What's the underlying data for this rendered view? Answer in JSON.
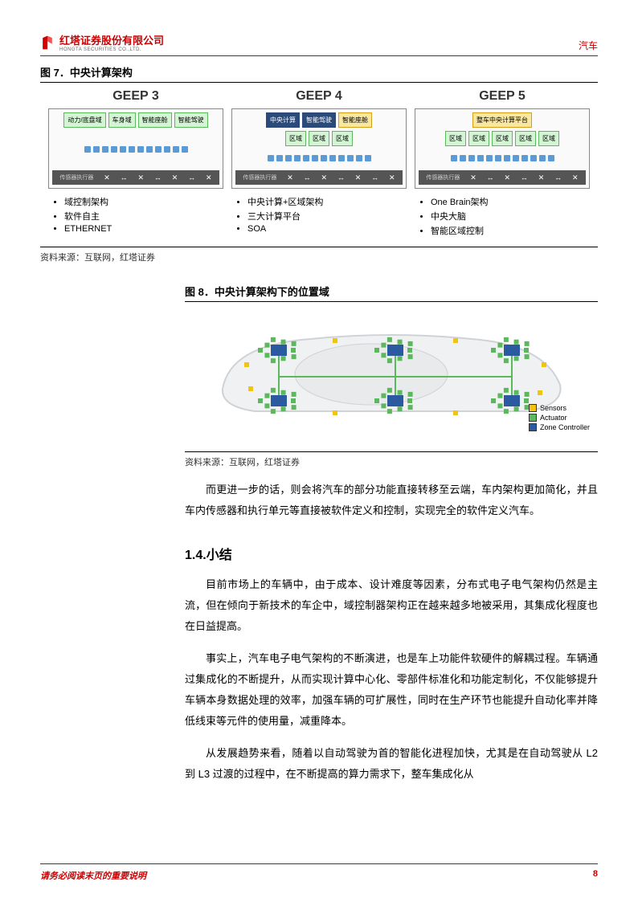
{
  "header": {
    "company": "红塔证券股份有限公司",
    "company_en": "HONGTA SECURITIES CO.,LTD.",
    "category": "汽车"
  },
  "figure7": {
    "title": "图 7．中央计算架构",
    "source": "资料来源：互联网，红塔证券",
    "columns": [
      {
        "title": "GEEP 3",
        "top_modules": [
          {
            "label": "动力/底盘域",
            "cls": "green"
          },
          {
            "label": "车身域",
            "cls": "green"
          },
          {
            "label": "智能座舱",
            "cls": "green"
          },
          {
            "label": "智能驾驶",
            "cls": "green"
          }
        ],
        "bullets": [
          "域控制架构",
          "软件自主",
          "ETHERNET"
        ]
      },
      {
        "title": "GEEP 4",
        "top_modules": [
          {
            "label": "中央计算",
            "cls": "navy"
          },
          {
            "label": "智能驾驶",
            "cls": "navy"
          },
          {
            "label": "智能座舱",
            "cls": "yellow"
          }
        ],
        "zone_modules": [
          {
            "label": "区域",
            "cls": "green"
          },
          {
            "label": "区域",
            "cls": "green"
          },
          {
            "label": "区域",
            "cls": "green"
          }
        ],
        "bullets": [
          "中央计算+区域架构",
          "三大计算平台",
          "SOA"
        ]
      },
      {
        "title": "GEEP 5",
        "top_modules": [
          {
            "label": "整车中央计算平台",
            "cls": "yellow"
          }
        ],
        "zone_modules": [
          {
            "label": "区域",
            "cls": "green"
          },
          {
            "label": "区域",
            "cls": "green"
          },
          {
            "label": "区域",
            "cls": "green"
          },
          {
            "label": "区域",
            "cls": "green"
          },
          {
            "label": "区域",
            "cls": "green"
          }
        ],
        "bullets": [
          "One Brain架构",
          "中央大脑",
          "智能区域控制"
        ]
      }
    ],
    "sensor_label": "传感器执行器"
  },
  "figure8": {
    "title": "图 8．中央计算架构下的位置域",
    "source": "资料来源：互联网，红塔证券",
    "legend": {
      "sensors": "Sensors",
      "actuator": "Actuator",
      "zone": "Zone Controller"
    },
    "colors": {
      "sensor": "#f1c40f",
      "actuator": "#5cb85c",
      "zone": "#2b5aa0",
      "car_fill": "#f0f1f2",
      "car_stroke": "#cfd3d6",
      "bus": "#5cb85c"
    }
  },
  "paragraphs": {
    "p1": "而更进一步的话，则会将汽车的部分功能直接转移至云端，车内架构更加简化，并且车内传感器和执行单元等直接被软件定义和控制，实现完全的软件定义汽车。",
    "heading": "1.4.小结",
    "p2": "目前市场上的车辆中，由于成本、设计难度等因素，分布式电子电气架构仍然是主流，但在倾向于新技术的车企中，域控制器架构正在越来越多地被采用，其集成化程度也在日益提高。",
    "p3": "事实上，汽车电子电气架构的不断演进，也是车上功能件软硬件的解耦过程。车辆通过集成化的不断提升，从而实现计算中心化、零部件标准化和功能定制化，不仅能够提升车辆本身数据处理的效率，加强车辆的可扩展性，同时在生产环节也能提升自动化率并降低线束等元件的使用量，减重降本。",
    "p4": "从发展趋势来看，随着以自动驾驶为首的智能化进程加快，尤其是在自动驾驶从 L2 到 L3 过渡的过程中，在不断提高的算力需求下，整车集成化从"
  },
  "footer": {
    "left": "请务必阅读末页的重要说明",
    "page": "8"
  }
}
